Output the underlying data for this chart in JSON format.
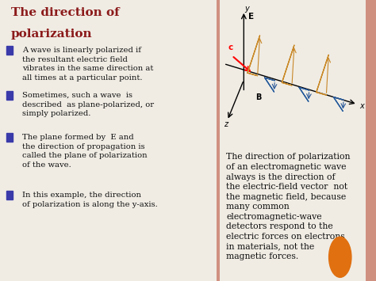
{
  "bg_color": "#f0ece4",
  "left_panel_bg": "#ffffff",
  "right_panel_bg": "#f0ece4",
  "title_line1": "The direction of",
  "title_line2": "polarization",
  "title_color": "#8B1A1A",
  "bullet_color": "#3a3aaa",
  "bullet_points": [
    "A wave is linearly polarized if\nthe resultant electric field\nvibrates in the same direction at\nall times at a particular point.",
    "Sometimes, such a wave  is\ndescribed  as plane-polarized, or\nsimply polarized.",
    "The plane formed by  E and\nthe direction of propagation is\ncalled the plane of polarization\nof the wave.",
    "In this example, the direction\nof polarization is along the y-axis."
  ],
  "right_bottom_text": "The direction of polarization\nof an electromagnetic wave\nalways is the direction of\nthe electric-field vector  not\nthe magnetic field, because\nmany common\nelectromagnetic-wave\ndetectors respond to the\nelectric forces on electrons\nin materials, not the\nmagnetic forces.",
  "orange_dot_color": "#e07010",
  "divider_color": "#d09080",
  "text_color": "#111111",
  "font_size_title": 11,
  "font_size_body": 7.2,
  "font_size_right": 7.8
}
